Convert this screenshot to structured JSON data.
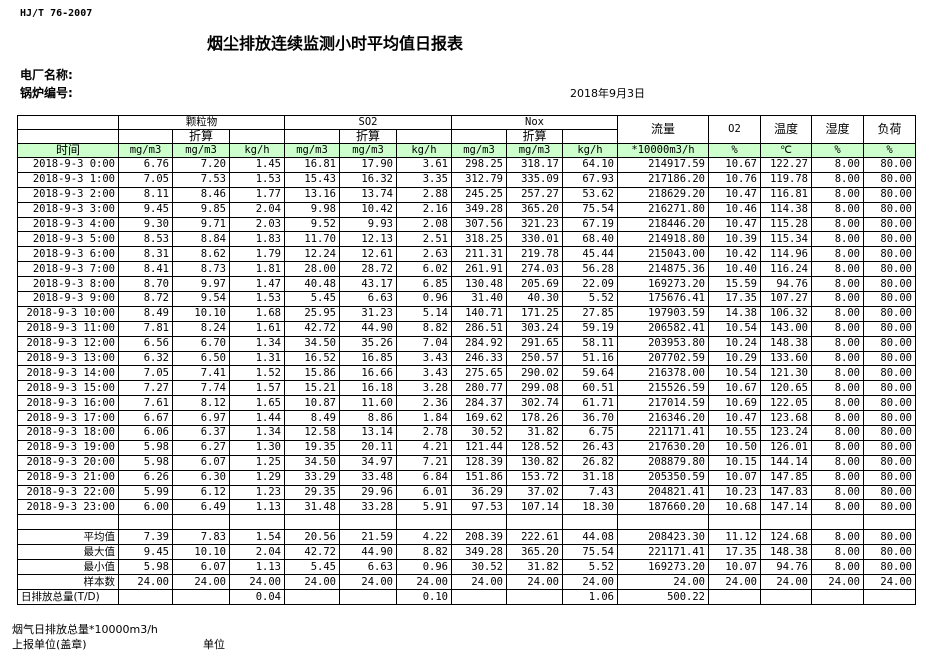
{
  "header": {
    "standard": "HJ/T  76-2007",
    "title": "烟尘排放连续监测小时平均值日报表",
    "plant_label": "电厂名称:",
    "boiler_label": "锅炉编号:",
    "date": "2018年9月3日"
  },
  "columns": {
    "group_pm": "颗粒物",
    "group_so2": "SO2",
    "group_nox": "Nox",
    "converted": "折算",
    "flow": "流量",
    "o2": "O2",
    "temp": "温度",
    "humidity": "湿度",
    "load": "负荷",
    "time": "时间",
    "units": [
      "mg/m3",
      "mg/m3",
      "kg/h",
      "mg/m3",
      "mg/m3",
      "kg/h",
      "mg/m3",
      "mg/m3",
      "kg/h",
      "*10000m3/h",
      "%",
      "℃",
      "%",
      "%"
    ]
  },
  "rows": [
    [
      "2018-9-3 0:00",
      "6.76",
      "7.20",
      "1.45",
      "16.81",
      "17.90",
      "3.61",
      "298.25",
      "318.17",
      "64.10",
      "214917.59",
      "10.67",
      "122.27",
      "8.00",
      "80.00"
    ],
    [
      "2018-9-3 1:00",
      "7.05",
      "7.53",
      "1.53",
      "15.43",
      "16.32",
      "3.35",
      "312.79",
      "335.09",
      "67.93",
      "217186.20",
      "10.76",
      "119.78",
      "8.00",
      "80.00"
    ],
    [
      "2018-9-3 2:00",
      "8.11",
      "8.46",
      "1.77",
      "13.16",
      "13.74",
      "2.88",
      "245.25",
      "257.27",
      "53.62",
      "218629.20",
      "10.47",
      "116.81",
      "8.00",
      "80.00"
    ],
    [
      "2018-9-3 3:00",
      "9.45",
      "9.85",
      "2.04",
      "9.98",
      "10.42",
      "2.16",
      "349.28",
      "365.20",
      "75.54",
      "216271.80",
      "10.46",
      "114.38",
      "8.00",
      "80.00"
    ],
    [
      "2018-9-3 4:00",
      "9.30",
      "9.71",
      "2.03",
      "9.52",
      "9.93",
      "2.08",
      "307.56",
      "321.23",
      "67.19",
      "218446.20",
      "10.47",
      "115.28",
      "8.00",
      "80.00"
    ],
    [
      "2018-9-3 5:00",
      "8.53",
      "8.84",
      "1.83",
      "11.70",
      "12.13",
      "2.51",
      "318.25",
      "330.01",
      "68.40",
      "214918.80",
      "10.39",
      "115.34",
      "8.00",
      "80.00"
    ],
    [
      "2018-9-3 6:00",
      "8.31",
      "8.62",
      "1.79",
      "12.24",
      "12.61",
      "2.63",
      "211.31",
      "219.78",
      "45.44",
      "215043.00",
      "10.42",
      "114.96",
      "8.00",
      "80.00"
    ],
    [
      "2018-9-3 7:00",
      "8.41",
      "8.73",
      "1.81",
      "28.00",
      "28.72",
      "6.02",
      "261.91",
      "274.03",
      "56.28",
      "214875.36",
      "10.40",
      "116.24",
      "8.00",
      "80.00"
    ],
    [
      "2018-9-3 8:00",
      "8.70",
      "9.97",
      "1.47",
      "40.48",
      "43.17",
      "6.85",
      "130.48",
      "205.69",
      "22.09",
      "169273.20",
      "15.59",
      "94.76",
      "8.00",
      "80.00"
    ],
    [
      "2018-9-3 9:00",
      "8.72",
      "9.54",
      "1.53",
      "5.45",
      "6.63",
      "0.96",
      "31.40",
      "40.30",
      "5.52",
      "175676.41",
      "17.35",
      "107.27",
      "8.00",
      "80.00"
    ],
    [
      "2018-9-3 10:00",
      "8.49",
      "10.10",
      "1.68",
      "25.95",
      "31.23",
      "5.14",
      "140.71",
      "171.25",
      "27.85",
      "197903.59",
      "14.38",
      "106.32",
      "8.00",
      "80.00"
    ],
    [
      "2018-9-3 11:00",
      "7.81",
      "8.24",
      "1.61",
      "42.72",
      "44.90",
      "8.82",
      "286.51",
      "303.24",
      "59.19",
      "206582.41",
      "10.54",
      "143.00",
      "8.00",
      "80.00"
    ],
    [
      "2018-9-3 12:00",
      "6.56",
      "6.70",
      "1.34",
      "34.50",
      "35.26",
      "7.04",
      "284.92",
      "291.65",
      "58.11",
      "203953.80",
      "10.24",
      "148.38",
      "8.00",
      "80.00"
    ],
    [
      "2018-9-3 13:00",
      "6.32",
      "6.50",
      "1.31",
      "16.52",
      "16.85",
      "3.43",
      "246.33",
      "250.57",
      "51.16",
      "207702.59",
      "10.29",
      "133.60",
      "8.00",
      "80.00"
    ],
    [
      "2018-9-3 14:00",
      "7.05",
      "7.41",
      "1.52",
      "15.86",
      "16.66",
      "3.43",
      "275.65",
      "290.02",
      "59.64",
      "216378.00",
      "10.54",
      "121.30",
      "8.00",
      "80.00"
    ],
    [
      "2018-9-3 15:00",
      "7.27",
      "7.74",
      "1.57",
      "15.21",
      "16.18",
      "3.28",
      "280.77",
      "299.08",
      "60.51",
      "215526.59",
      "10.67",
      "120.65",
      "8.00",
      "80.00"
    ],
    [
      "2018-9-3 16:00",
      "7.61",
      "8.12",
      "1.65",
      "10.87",
      "11.60",
      "2.36",
      "284.37",
      "302.74",
      "61.71",
      "217014.59",
      "10.69",
      "122.05",
      "8.00",
      "80.00"
    ],
    [
      "2018-9-3 17:00",
      "6.67",
      "6.97",
      "1.44",
      "8.49",
      "8.86",
      "1.84",
      "169.62",
      "178.26",
      "36.70",
      "216346.20",
      "10.47",
      "123.68",
      "8.00",
      "80.00"
    ],
    [
      "2018-9-3 18:00",
      "6.06",
      "6.37",
      "1.34",
      "12.58",
      "13.14",
      "2.78",
      "30.52",
      "31.82",
      "6.75",
      "221171.41",
      "10.55",
      "123.24",
      "8.00",
      "80.00"
    ],
    [
      "2018-9-3 19:00",
      "5.98",
      "6.27",
      "1.30",
      "19.35",
      "20.11",
      "4.21",
      "121.44",
      "128.52",
      "26.43",
      "217630.20",
      "10.50",
      "126.01",
      "8.00",
      "80.00"
    ],
    [
      "2018-9-3 20:00",
      "5.98",
      "6.07",
      "1.25",
      "34.50",
      "34.97",
      "7.21",
      "128.39",
      "130.82",
      "26.82",
      "208879.80",
      "10.15",
      "144.14",
      "8.00",
      "80.00"
    ],
    [
      "2018-9-3 21:00",
      "6.26",
      "6.30",
      "1.29",
      "33.29",
      "33.48",
      "6.84",
      "151.86",
      "153.72",
      "31.18",
      "205350.59",
      "10.07",
      "147.85",
      "8.00",
      "80.00"
    ],
    [
      "2018-9-3 22:00",
      "5.99",
      "6.12",
      "1.23",
      "29.35",
      "29.96",
      "6.01",
      "36.29",
      "37.02",
      "7.43",
      "204821.41",
      "10.23",
      "147.83",
      "8.00",
      "80.00"
    ],
    [
      "2018-9-3 23:00",
      "6.00",
      "6.49",
      "1.13",
      "31.48",
      "33.28",
      "5.91",
      "97.53",
      "107.14",
      "18.30",
      "187660.20",
      "10.68",
      "147.14",
      "8.00",
      "80.00"
    ]
  ],
  "stats": [
    [
      "平均值",
      "7.39",
      "7.83",
      "1.54",
      "20.56",
      "21.59",
      "4.22",
      "208.39",
      "222.61",
      "44.08",
      "208423.30",
      "11.12",
      "124.68",
      "8.00",
      "80.00"
    ],
    [
      "最大值",
      "9.45",
      "10.10",
      "2.04",
      "42.72",
      "44.90",
      "8.82",
      "349.28",
      "365.20",
      "75.54",
      "221171.41",
      "17.35",
      "148.38",
      "8.00",
      "80.00"
    ],
    [
      "最小值",
      "5.98",
      "6.07",
      "1.13",
      "5.45",
      "6.63",
      "0.96",
      "30.52",
      "31.82",
      "5.52",
      "169273.20",
      "10.07",
      "94.76",
      "8.00",
      "80.00"
    ],
    [
      "样本数",
      "24.00",
      "24.00",
      "24.00",
      "24.00",
      "24.00",
      "24.00",
      "24.00",
      "24.00",
      "24.00",
      "24.00",
      "24.00",
      "24.00",
      "24.00",
      "24.00"
    ]
  ],
  "daily_total": [
    "日排放总量(T/D)",
    "",
    "",
    "0.04",
    "",
    "",
    "0.10",
    "",
    "",
    "1.06",
    "500.22",
    "",
    "",
    "",
    ""
  ],
  "footer": {
    "flue_gas_total": "烟气日排放总量*10000m3/h",
    "reporting_unit": "上报单位(盖章)",
    "unit": "单位"
  },
  "colors": {
    "header_green": "#ccffcc"
  }
}
